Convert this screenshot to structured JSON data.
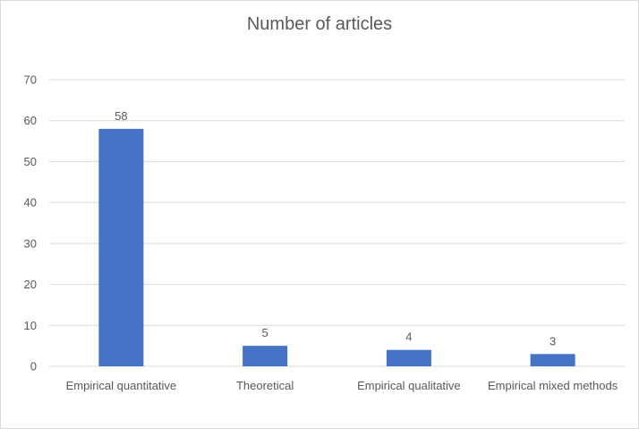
{
  "chart_data": {
    "type": "bar",
    "title": "Number of articles",
    "categories": [
      "Empirical quantitative",
      "Theoretical",
      "Empirical qualitative",
      "Empirical mixed methods"
    ],
    "values": [
      58,
      5,
      4,
      3
    ],
    "data_labels": [
      "58",
      "5",
      "4",
      "3"
    ],
    "ylim": [
      0,
      70
    ],
    "yticks": [
      0,
      10,
      20,
      30,
      40,
      50,
      60,
      70
    ],
    "xlabel": "",
    "ylabel": "",
    "grid": true,
    "legend": "none",
    "bar_color": "#4472C4",
    "grid_color": "#d9d9d9"
  }
}
